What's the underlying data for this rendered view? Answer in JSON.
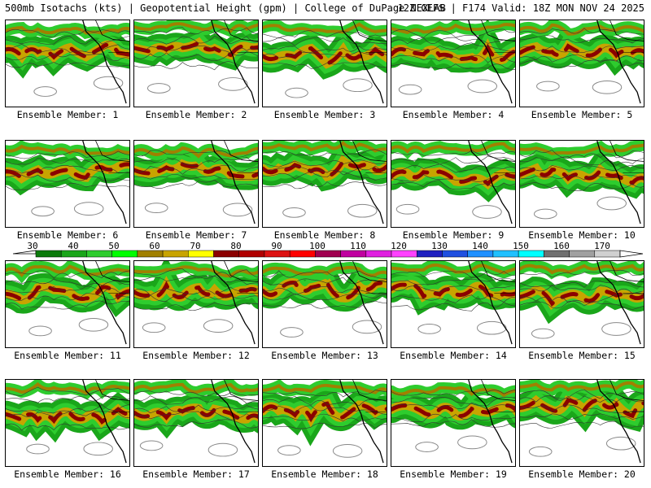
{
  "header": {
    "left": "500mb Isotachs (kts) | Geopotential Height (gpm) | College of DuPage NEXLAB",
    "right": "12Z GEFS | F174 Valid: 18Z MON NOV 24 2025"
  },
  "colorbar": {
    "ticks": [
      "30",
      "40",
      "50",
      "60",
      "70",
      "80",
      "90",
      "100",
      "110",
      "120",
      "130",
      "140",
      "150",
      "160",
      "170"
    ],
    "colors": [
      "#0a7a0a",
      "#1aa61a",
      "#2ecc2e",
      "#00ff00",
      "#a08000",
      "#c8a400",
      "#ffff00",
      "#8b0000",
      "#b00000",
      "#dd1111",
      "#ff0000",
      "#a00050",
      "#c000a0",
      "#e020e0",
      "#ff40ff",
      "#2020c0",
      "#2050e0",
      "#2090ff",
      "#20c0ff",
      "#00ffff",
      "#707070",
      "#a0a0a0",
      "#d0d0d0"
    ]
  },
  "panels": [
    {
      "caption": "Ensemble Member: 1"
    },
    {
      "caption": "Ensemble Member: 2"
    },
    {
      "caption": "Ensemble Member: 3"
    },
    {
      "caption": "Ensemble Member: 4"
    },
    {
      "caption": "Ensemble Member: 5"
    },
    {
      "caption": "Ensemble Member: 6"
    },
    {
      "caption": "Ensemble Member: 7"
    },
    {
      "caption": "Ensemble Member: 8"
    },
    {
      "caption": "Ensemble Member: 9"
    },
    {
      "caption": "Ensemble Member: 10"
    },
    {
      "caption": "Ensemble Member: 11"
    },
    {
      "caption": "Ensemble Member: 12"
    },
    {
      "caption": "Ensemble Member: 13"
    },
    {
      "caption": "Ensemble Member: 14"
    },
    {
      "caption": "Ensemble Member: 15"
    },
    {
      "caption": "Ensemble Member: 16"
    },
    {
      "caption": "Ensemble Member: 17"
    },
    {
      "caption": "Ensemble Member: 18"
    },
    {
      "caption": "Ensemble Member: 19"
    },
    {
      "caption": "Ensemble Member: 20"
    }
  ]
}
